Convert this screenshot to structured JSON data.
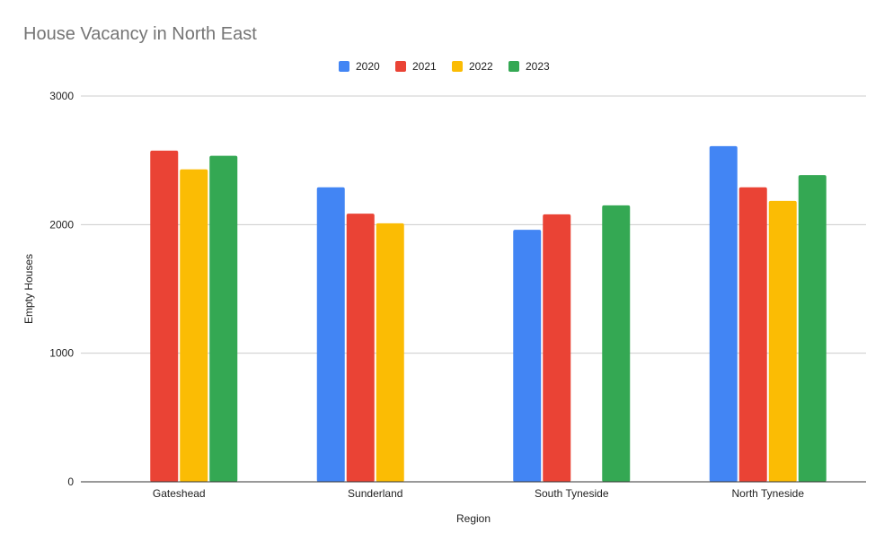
{
  "chart_data": {
    "type": "bar",
    "title": "House Vacancy in North East",
    "xlabel": "Region",
    "ylabel": "Empty Houses",
    "categories": [
      "Gateshead",
      "Sunderland",
      "South Tyneside",
      "North Tyneside"
    ],
    "series": [
      {
        "name": "2020",
        "color": "#4285f4",
        "values": [
          null,
          2290,
          1960,
          2610
        ]
      },
      {
        "name": "2021",
        "color": "#ea4335",
        "values": [
          2575,
          2085,
          2080,
          2290
        ]
      },
      {
        "name": "2022",
        "color": "#fbbc04",
        "values": [
          2430,
          2010,
          null,
          2185
        ]
      },
      {
        "name": "2023",
        "color": "#34a853",
        "values": [
          2535,
          null,
          2150,
          2385
        ]
      }
    ],
    "ylim": [
      0,
      3000
    ],
    "yticks": [
      "0",
      "1000",
      "2000",
      "3000"
    ],
    "grid": true,
    "legend_position": "top-center"
  }
}
